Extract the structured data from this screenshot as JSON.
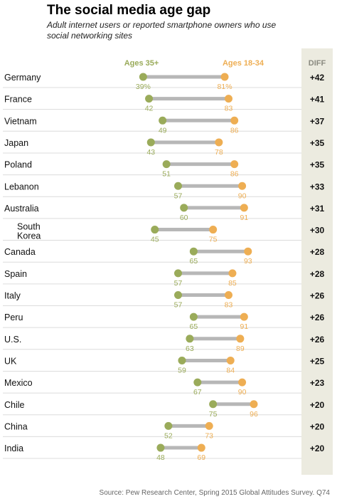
{
  "title": "The social media age gap",
  "subtitle": "Adult internet users or reported smartphone owners who use social networking sites",
  "source": "Source: Pew Research Center, Spring 2015 Global Attitudes Survey. Q74",
  "chart_data": {
    "type": "dumbbell",
    "series": [
      {
        "name": "Ages 35+",
        "color": "#9aab5a"
      },
      {
        "name": "Ages 18-34",
        "color": "#eeae53"
      }
    ],
    "diff_header": "DIFF",
    "rows": [
      {
        "country": "Germany",
        "older": 39,
        "younger": 81,
        "older_label": "39%",
        "younger_label": "81%",
        "diff": "+42"
      },
      {
        "country": "France",
        "older": 42,
        "younger": 83,
        "older_label": "42",
        "younger_label": "83",
        "diff": "+41"
      },
      {
        "country": "Vietnam",
        "older": 49,
        "younger": 86,
        "older_label": "49",
        "younger_label": "86",
        "diff": "+37"
      },
      {
        "country": "Japan",
        "older": 43,
        "younger": 78,
        "older_label": "43",
        "younger_label": "78",
        "diff": "+35"
      },
      {
        "country": "Poland",
        "older": 51,
        "younger": 86,
        "older_label": "51",
        "younger_label": "86",
        "diff": "+35"
      },
      {
        "country": "Lebanon",
        "older": 57,
        "younger": 90,
        "older_label": "57",
        "younger_label": "90",
        "diff": "+33"
      },
      {
        "country": "Australia",
        "older": 60,
        "younger": 91,
        "older_label": "60",
        "younger_label": "91",
        "diff": "+31"
      },
      {
        "country": "South Korea",
        "country_lines": [
          "South",
          "Korea"
        ],
        "older": 45,
        "younger": 75,
        "older_label": "45",
        "younger_label": "75",
        "diff": "+30"
      },
      {
        "country": "Canada",
        "older": 65,
        "younger": 93,
        "older_label": "65",
        "younger_label": "93",
        "diff": "+28"
      },
      {
        "country": "Spain",
        "older": 57,
        "younger": 85,
        "older_label": "57",
        "younger_label": "85",
        "diff": "+28"
      },
      {
        "country": "Italy",
        "older": 57,
        "younger": 83,
        "older_label": "57",
        "younger_label": "83",
        "diff": "+26"
      },
      {
        "country": "Peru",
        "older": 65,
        "younger": 91,
        "older_label": "65",
        "younger_label": "91",
        "diff": "+26"
      },
      {
        "country": "U.S.",
        "older": 63,
        "younger": 89,
        "older_label": "63",
        "younger_label": "89",
        "diff": "+26"
      },
      {
        "country": "UK",
        "older": 59,
        "younger": 84,
        "older_label": "59",
        "younger_label": "84",
        "diff": "+25"
      },
      {
        "country": "Mexico",
        "older": 67,
        "younger": 90,
        "older_label": "67",
        "younger_label": "90",
        "diff": "+23"
      },
      {
        "country": "Chile",
        "older": 75,
        "younger": 96,
        "older_label": "75",
        "younger_label": "96",
        "diff": "+20"
      },
      {
        "country": "China",
        "older": 52,
        "younger": 73,
        "older_label": "52",
        "younger_label": "73",
        "diff": "+20"
      },
      {
        "country": "India",
        "older": 48,
        "younger": 69,
        "older_label": "48",
        "younger_label": "69",
        "diff": "+20"
      }
    ]
  }
}
